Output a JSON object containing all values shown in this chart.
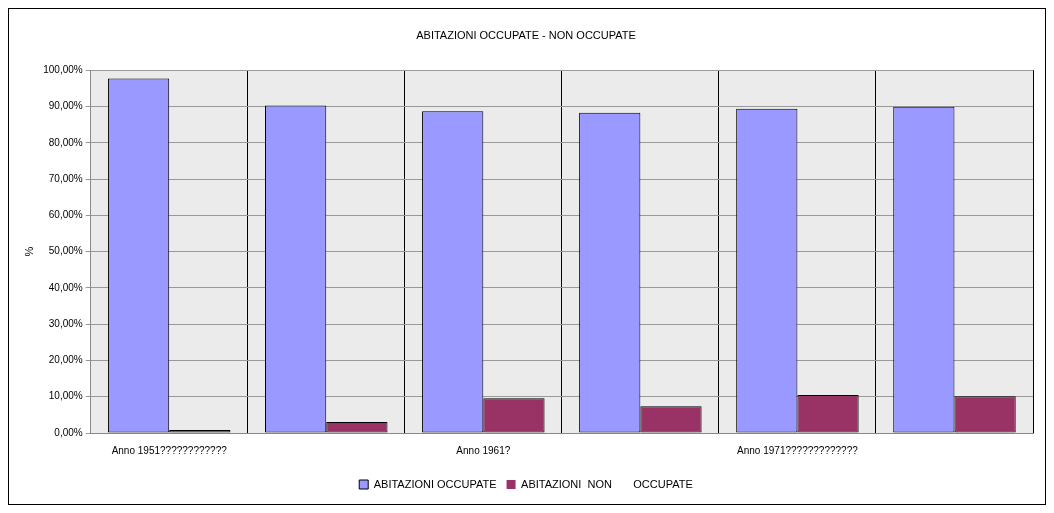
{
  "chart_data": {
    "type": "bar",
    "title": "ABITAZIONI OCCUPATE - NON OCCUPATE",
    "ylabel": "%",
    "categories": [
      "Anno 1951????????????",
      null,
      "Anno 1961?",
      null,
      "Anno 1971?????????????",
      null
    ],
    "series": [
      {
        "name": "ABITAZIONI OCCUPATE",
        "color": "#9999ff",
        "values": [
          97.7,
          90.3,
          88.7,
          88.3,
          89.4,
          89.9
        ]
      },
      {
        "name": "ABITAZIONI  NON       OCCUPATE",
        "color": "#993366",
        "values": [
          0.3,
          3.0,
          9.6,
          7.4,
          10.5,
          10.1
        ]
      }
    ],
    "ylim": [
      0,
      100
    ],
    "yticks": [
      {
        "value": 0,
        "label": "0,00%"
      },
      {
        "value": 10,
        "label": "10,00%"
      },
      {
        "value": 20,
        "label": "20,00%"
      },
      {
        "value": 30,
        "label": "30,00%"
      },
      {
        "value": 40,
        "label": "40,00%"
      },
      {
        "value": 50,
        "label": "50,00%"
      },
      {
        "value": 60,
        "label": "60,00%"
      },
      {
        "value": 70,
        "label": "70,00%"
      },
      {
        "value": 80,
        "label": "80,00%"
      },
      {
        "value": 90,
        "label": "90,00%"
      },
      {
        "value": 100,
        "label": "100,00%"
      }
    ],
    "grid": true,
    "legend": "bottom"
  }
}
